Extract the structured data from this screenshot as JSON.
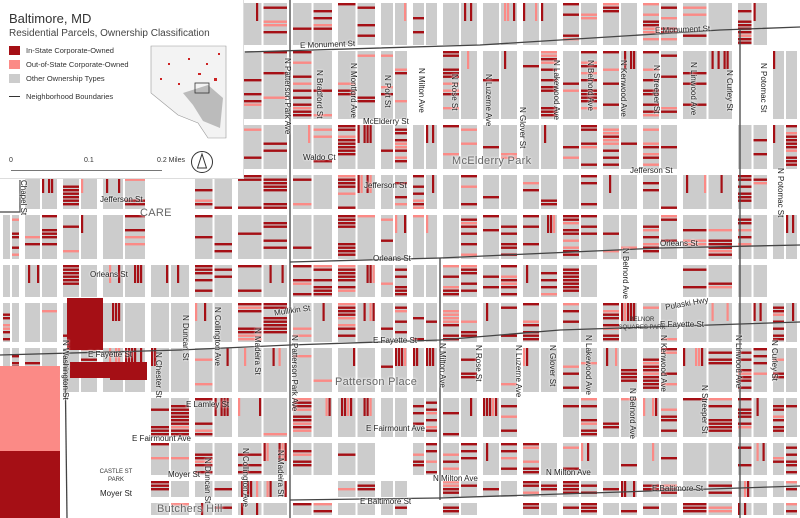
{
  "legend": {
    "title": "Baltimore, MD",
    "subtitle": "Residential Parcels, Ownership Classification",
    "items": [
      {
        "label": "In-State Corporate-Owned",
        "color": "#a50f15"
      },
      {
        "label": "Out-of-State Corporate-Owned",
        "color": "#fb8a86"
      },
      {
        "label": "Other Ownership Types",
        "color": "#cccccc"
      }
    ],
    "boundary_label": "Neighborhood Boundaries",
    "scale": {
      "zero": "0",
      "mid": "0.1",
      "end": "0.2 Miles"
    },
    "north_arrow": "north-arrow-icon"
  },
  "streets": {
    "monument_left": "E Monument St",
    "monument_right": "E Monument St",
    "mcelderry": "McElderry St",
    "jefferson_left": "Jefferson St",
    "jefferson_mid": "Jefferson St",
    "jefferson_right": "Jefferson St",
    "orleans_left": "Orleans St",
    "orleans_mid": "Orleans St",
    "orleans_right": "Orleans St",
    "fayette_left": "E Fayette St",
    "fayette_mid": "E Fayette St",
    "fayette_right": "E Fayette St",
    "fairmount_left": "E Fairmount Ave",
    "fairmount_mid": "E Fairmount Ave",
    "baltimore_mid": "E Baltimore St",
    "baltimore_right": "E Baltimore St",
    "milton_h1": "N Milton Ave",
    "milton_h2": "N Milton Ave",
    "moyer1": "Moyer St",
    "moyer2": "Moyer St",
    "lamley": "E Lamley St",
    "mullikin": "Mullikin St",
    "waldo": "Waldo Ct",
    "pulaski": "Pulaski Hwy",
    "chapel": "Chapel St",
    "patterson_top": "N Patterson Park Ave",
    "patterson_bot": "N Patterson Park Ave",
    "bradford": "N Bradford St",
    "montford": "N Montford Ave",
    "port": "N Port St",
    "milton_v": "N Milton Ave",
    "milton_v2": "N Milton Ave",
    "rose": "N Rose St",
    "rose2": "N Rose St",
    "luzerne": "N Luzerne Ave",
    "luzerne2": "N Luzerne Ave",
    "glover": "N Glover St",
    "glover2": "N Glover St",
    "lakewood": "N Lakewood Ave",
    "lakewood2": "N Lakewood Ave",
    "belnord": "N Belnord Ave",
    "belnord2": "N Belnord Ave",
    "belnord3": "N Belnord Ave",
    "kenwood": "N Kenwood Ave",
    "kenwood2": "N Kenwood Ave",
    "streeper": "N Streeper St",
    "streeper2": "N Streeper St",
    "linwood": "N Linwood Ave",
    "linwood2": "N Linwood Ave",
    "curley": "N Curley St",
    "curley2": "N Curley St",
    "potomac": "N Potomac St",
    "potomac2": "N Potomac St",
    "washington": "N Washington St",
    "chester": "N Chester St",
    "duncan": "N Duncan St",
    "duncan2": "N Duncan St",
    "collington": "N Collington Ave",
    "collington2": "N Collington Ave",
    "madeira": "N Madeira St",
    "madeira2": "N Madeira St"
  },
  "neighborhoods": {
    "mcelderry_park": "McElderry Park",
    "care": "CARE",
    "patterson_place": "Patterson Place",
    "butchers_hill": "Butchers Hill"
  },
  "parks": {
    "belnor": "BELNOR SQUARES PARK",
    "castle": "CASTLE ST PARK"
  }
}
